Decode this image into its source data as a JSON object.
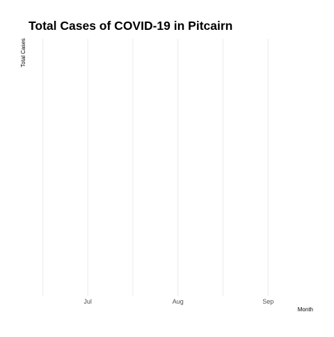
{
  "chart_data": {
    "type": "line",
    "title": "Total Cases of COVID-19 in Pitcairn",
    "xlabel": "Month",
    "ylabel": "Total Cases",
    "x_ticks": [
      {
        "label": "Jul",
        "pos": 1
      },
      {
        "label": "Aug",
        "pos": 2
      },
      {
        "label": "Sep",
        "pos": 3
      }
    ],
    "x_minor": [
      0.5,
      1.5,
      2.5
    ],
    "xlim": [
      0.35,
      3.5
    ],
    "series": [
      {
        "name": "Total Cases",
        "x": [],
        "values": []
      }
    ],
    "grid": true,
    "colors": {
      "grid": "#ebebeb",
      "text": "#000000",
      "tick_text": "#4d4d4d"
    }
  }
}
